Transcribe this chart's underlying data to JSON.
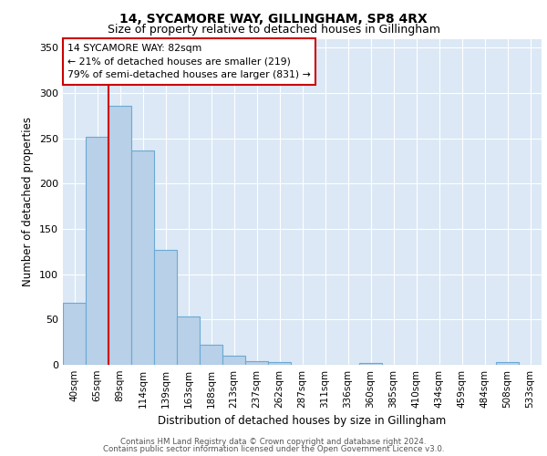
{
  "title1": "14, SYCAMORE WAY, GILLINGHAM, SP8 4RX",
  "title2": "Size of property relative to detached houses in Gillingham",
  "xlabel": "Distribution of detached houses by size in Gillingham",
  "ylabel": "Number of detached properties",
  "bar_labels": [
    "40sqm",
    "65sqm",
    "89sqm",
    "114sqm",
    "139sqm",
    "163sqm",
    "188sqm",
    "213sqm",
    "237sqm",
    "262sqm",
    "287sqm",
    "311sqm",
    "336sqm",
    "360sqm",
    "385sqm",
    "410sqm",
    "434sqm",
    "459sqm",
    "484sqm",
    "508sqm",
    "533sqm"
  ],
  "bar_values": [
    68,
    252,
    286,
    237,
    127,
    53,
    22,
    10,
    4,
    3,
    0,
    0,
    0,
    2,
    0,
    0,
    0,
    0,
    0,
    3,
    0
  ],
  "bar_color": "#b8d0e8",
  "bar_edge_color": "#6aaad4",
  "annotation_title": "14 SYCAMORE WAY: 82sqm",
  "annotation_line1": "← 21% of detached houses are smaller (219)",
  "annotation_line2": "79% of semi-detached houses are larger (831) →",
  "annotation_box_color": "#ffffff",
  "annotation_border_color": "#cc0000",
  "vline_color": "#cc0000",
  "background_color": "#dce8f5",
  "grid_color": "#ffffff",
  "footnote1": "Contains HM Land Registry data © Crown copyright and database right 2024.",
  "footnote2": "Contains public sector information licensed under the Open Government Licence v3.0.",
  "ylim": [
    0,
    360
  ],
  "yticks": [
    0,
    50,
    100,
    150,
    200,
    250,
    300,
    350
  ]
}
